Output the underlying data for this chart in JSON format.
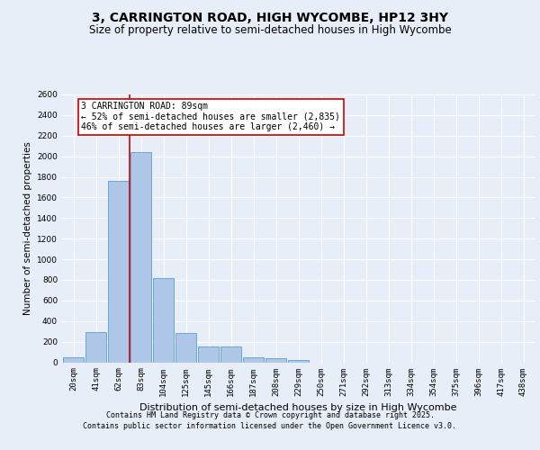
{
  "title": "3, CARRINGTON ROAD, HIGH WYCOMBE, HP12 3HY",
  "subtitle": "Size of property relative to semi-detached houses in High Wycombe",
  "xlabel": "Distribution of semi-detached houses by size in High Wycombe",
  "ylabel": "Number of semi-detached properties",
  "categories": [
    "20sqm",
    "41sqm",
    "62sqm",
    "83sqm",
    "104sqm",
    "125sqm",
    "145sqm",
    "166sqm",
    "187sqm",
    "208sqm",
    "229sqm",
    "250sqm",
    "271sqm",
    "292sqm",
    "313sqm",
    "334sqm",
    "354sqm",
    "375sqm",
    "396sqm",
    "417sqm",
    "438sqm"
  ],
  "bar_heights": [
    50,
    295,
    1760,
    2040,
    820,
    280,
    155,
    155,
    50,
    40,
    25,
    0,
    0,
    0,
    0,
    0,
    0,
    0,
    0,
    0,
    0
  ],
  "bar_color": "#aec6e8",
  "bar_edge_color": "#5a9fd4",
  "background_color": "#e8eef8",
  "grid_color": "#ffffff",
  "vline_x_index": 3,
  "vline_color": "#cc0000",
  "annotation_text": "3 CARRINGTON ROAD: 89sqm\n← 52% of semi-detached houses are smaller (2,835)\n46% of semi-detached houses are larger (2,460) →",
  "annotation_box_color": "#ffffff",
  "annotation_box_edge": "#cc0000",
  "ylim": [
    0,
    2600
  ],
  "yticks": [
    0,
    200,
    400,
    600,
    800,
    1000,
    1200,
    1400,
    1600,
    1800,
    2000,
    2200,
    2400,
    2600
  ],
  "footer_line1": "Contains HM Land Registry data © Crown copyright and database right 2025.",
  "footer_line2": "Contains public sector information licensed under the Open Government Licence v3.0.",
  "title_fontsize": 10,
  "subtitle_fontsize": 8.5,
  "tick_fontsize": 6.5,
  "ylabel_fontsize": 7.5,
  "xlabel_fontsize": 8,
  "footer_fontsize": 6,
  "annot_fontsize": 7
}
